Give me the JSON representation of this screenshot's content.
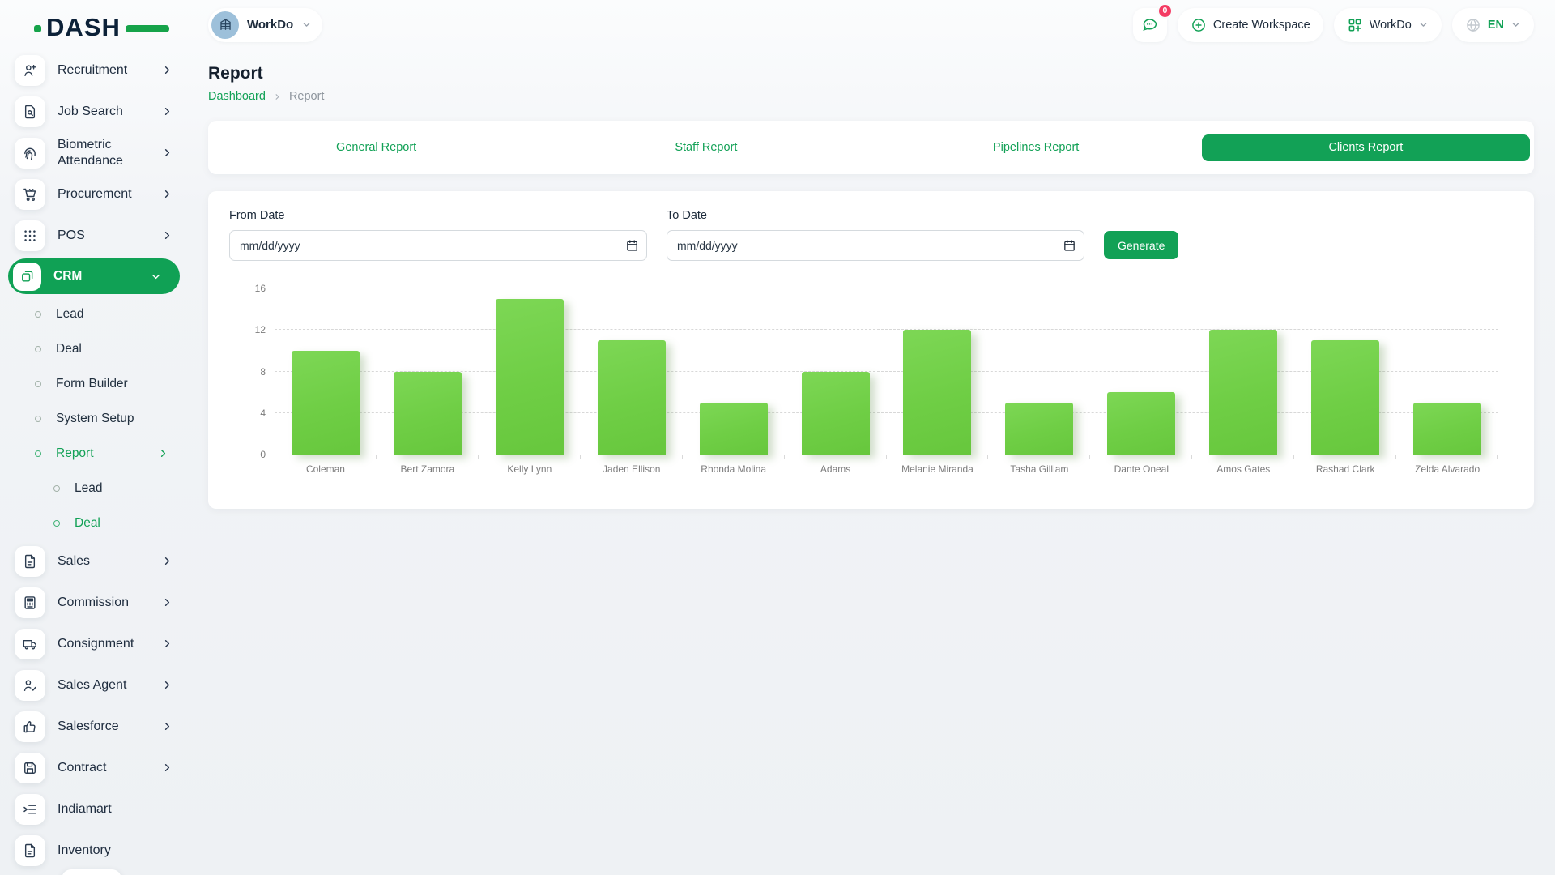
{
  "brand": {
    "logo_text": "DASH"
  },
  "header": {
    "workspace_switcher": {
      "label": "WorkDo",
      "avatar_icon": "building-icon"
    },
    "notifications": {
      "icon": "chat-icon",
      "badge": "0"
    },
    "create_workspace_label": "Create Workspace",
    "app_switcher_label": "WorkDo",
    "language": "EN"
  },
  "page": {
    "title": "Report",
    "breadcrumb": {
      "link": "Dashboard",
      "current": "Report"
    }
  },
  "tabs": [
    {
      "label": "General Report",
      "active": false
    },
    {
      "label": "Staff Report",
      "active": false
    },
    {
      "label": "Pipelines Report",
      "active": false
    },
    {
      "label": "Clients Report",
      "active": true
    }
  ],
  "filter": {
    "from_date_label": "From Date",
    "to_date_label": "To Date",
    "date_placeholder": "mm/dd/yyyy",
    "from_date_value": "",
    "to_date_value": "",
    "generate_label": "Generate"
  },
  "sidebar": {
    "items": [
      {
        "label": "Recruitment",
        "icon": "person-plus",
        "chevron": true
      },
      {
        "label": "Job Search",
        "icon": "document-search",
        "chevron": true
      },
      {
        "label": "Biometric Attendance",
        "icon": "fingerprint",
        "chevron": true
      },
      {
        "label": "Procurement",
        "icon": "cart",
        "chevron": true
      },
      {
        "label": "POS",
        "icon": "dots-grid",
        "chevron": true
      },
      {
        "label": "CRM",
        "icon": "overlap-squares",
        "active": true,
        "chevron": "down",
        "children": [
          {
            "label": "Lead"
          },
          {
            "label": "Deal"
          },
          {
            "label": "Form Builder"
          },
          {
            "label": "System Setup"
          },
          {
            "label": "Report",
            "active": true,
            "chevron": true,
            "children": [
              {
                "label": "Lead"
              },
              {
                "label": "Deal",
                "active": true
              }
            ]
          }
        ]
      },
      {
        "label": "Sales",
        "icon": "file",
        "chevron": true
      },
      {
        "label": "Commission",
        "icon": "calculator",
        "chevron": true
      },
      {
        "label": "Consignment",
        "icon": "truck",
        "chevron": true
      },
      {
        "label": "Sales Agent",
        "icon": "person-check",
        "chevron": true
      },
      {
        "label": "Salesforce",
        "icon": "thumbs-up",
        "chevron": true
      },
      {
        "label": "Contract",
        "icon": "floppy",
        "chevron": true
      },
      {
        "label": "Indiamart",
        "icon": "list-indent",
        "chevron": false
      },
      {
        "label": "Inventory",
        "icon": "file",
        "chevron": false
      }
    ]
  },
  "chart_data": {
    "type": "bar",
    "categories": [
      "Coleman",
      "Bert Zamora",
      "Kelly Lynn",
      "Jaden Ellison",
      "Rhonda Molina",
      "Adams",
      "Melanie Miranda",
      "Tasha Gilliam",
      "Dante Oneal",
      "Amos Gates",
      "Rashad Clark",
      "Zelda Alvarado"
    ],
    "values": [
      10,
      8,
      15,
      11,
      5,
      8,
      12,
      5,
      6,
      12,
      11,
      5
    ],
    "title": "",
    "xlabel": "",
    "ylabel": "",
    "ylim": [
      0,
      16
    ],
    "yticks": [
      0,
      4,
      8,
      12,
      16
    ],
    "grid": "horizontal-dashed",
    "legend": "none",
    "bar_color": "#6ecd46"
  },
  "colors": {
    "primary_green": "#12a156",
    "bar_green": "#6ecd46",
    "badge_pink": "#f43b63",
    "text_dark": "#1f2c3c",
    "text_gray": "#7c7c7c"
  }
}
